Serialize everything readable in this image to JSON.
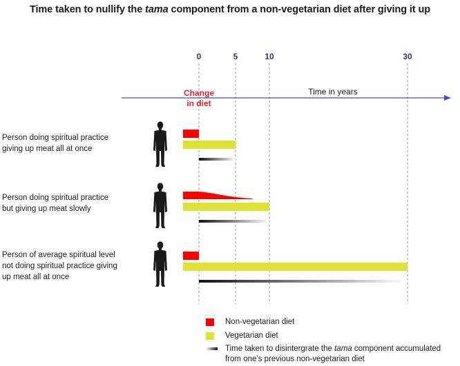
{
  "title": {
    "prefix": "Time taken to nullify the ",
    "em": "tama",
    "suffix": " component from a non-vegetarian diet after giving it up"
  },
  "axis": {
    "label": "Time in years",
    "change_line1": "Change",
    "change_line2": "in diet",
    "ticks": [
      "0",
      "5",
      "10",
      "30"
    ]
  },
  "colors": {
    "non_veg": "#ff0000",
    "veg": "#dde234",
    "axis": "#3a4fd6",
    "tick": "#2b3a78"
  },
  "rows": [
    {
      "label_lines": [
        "Person doing spiritual practice",
        "giving up meat all at once"
      ]
    },
    {
      "label_lines": [
        "Person doing spiritual practice",
        "but giving up meat slowly"
      ]
    },
    {
      "label_lines": [
        "Person of average spiritual level",
        "not doing spiritual practice giving",
        "up meat all at once"
      ]
    }
  ],
  "legend": {
    "non_veg": "Non-vegetarian diet",
    "veg": "Vegetarian diet",
    "tama_prefix": "Time taken to disintergrate the ",
    "tama_em": "tama",
    "tama_suffix": " component accumulated",
    "tama_line2": "from one’s previous non-vegetarian diet"
  },
  "chart_data": {
    "type": "timeline",
    "x_unit": "years",
    "x_ticks": [
      0,
      5,
      10,
      30
    ],
    "series": [
      {
        "non_veg": {
          "start": -2.5,
          "end": 0,
          "shape": "block"
        },
        "veg": {
          "start": -2.5,
          "end": 5
        },
        "tama_decay": {
          "start": 0,
          "end": 5
        }
      },
      {
        "non_veg": {
          "start": -2.5,
          "end": 7.5,
          "shape": "tapering"
        },
        "veg": {
          "start": -2.5,
          "end": 10
        },
        "tama_decay": {
          "start": 0,
          "end": 10
        }
      },
      {
        "non_veg": {
          "start": -2.5,
          "end": 0,
          "shape": "block"
        },
        "veg": {
          "start": -2.5,
          "end": 30
        },
        "tama_decay": {
          "start": 0,
          "end": 30
        }
      }
    ]
  }
}
